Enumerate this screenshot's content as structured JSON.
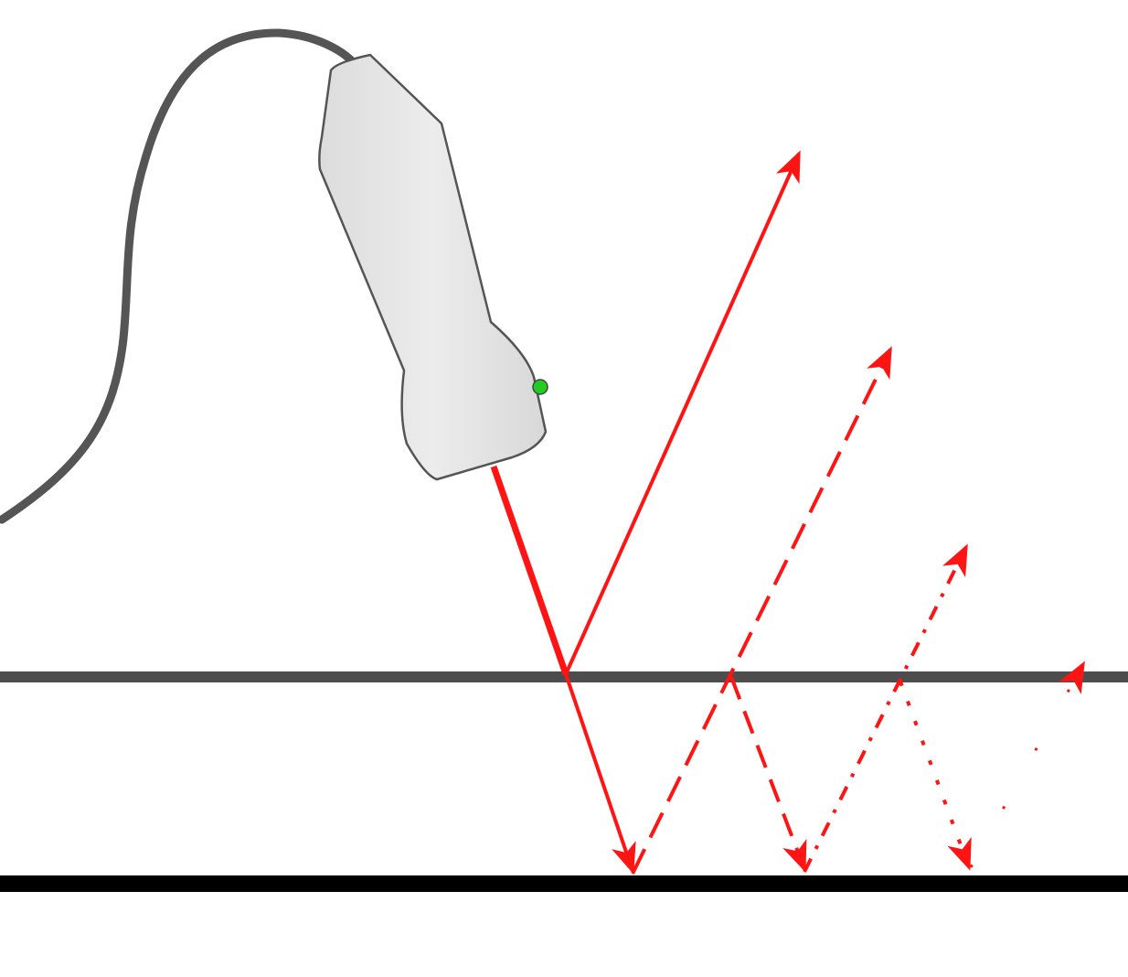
{
  "diagram": {
    "subject": "ultrasound-probe-reverberation",
    "colors": {
      "beam": "#ff1414",
      "upper_interface": "#4d4d4d",
      "lower_interface": "#000000",
      "probe_body": "#e8e8e8",
      "probe_outline": "#555555",
      "cable": "#555555",
      "indicator": "#22cc22"
    },
    "icons": [
      "ultrasound-probe-icon",
      "cable-icon",
      "indicator-led-icon"
    ],
    "beam_styles": [
      "solid",
      "dashed",
      "dash-dot",
      "dotted"
    ]
  }
}
